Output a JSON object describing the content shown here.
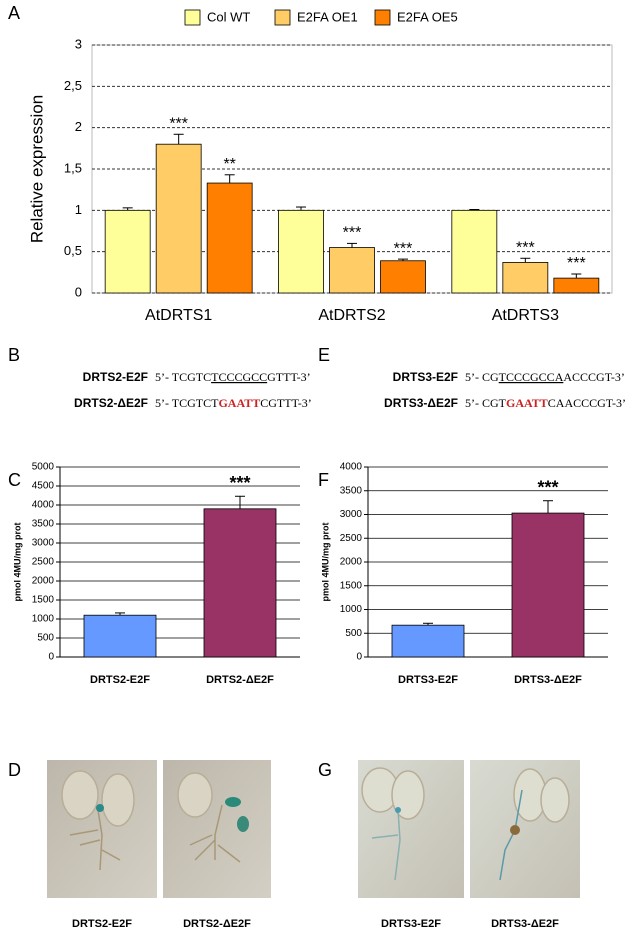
{
  "chart_data": [
    {
      "type": "bar",
      "panel": "A",
      "ylabel": "Relative expression",
      "categories": [
        "AtDRTS1",
        "AtDRTS2",
        "AtDRTS3"
      ],
      "series": [
        {
          "name": "Col WT",
          "color": "#ffff99",
          "values": [
            1.0,
            1.0,
            1.0
          ],
          "errors": [
            0.03,
            0.04,
            0.01
          ],
          "significance": [
            null,
            null,
            null
          ]
        },
        {
          "name": "E2FA OE1",
          "color": "#ffcc66",
          "values": [
            1.8,
            0.55,
            0.37
          ],
          "errors": [
            0.12,
            0.05,
            0.05
          ],
          "significance": [
            "***",
            "***",
            "***"
          ]
        },
        {
          "name": "E2FA OE5",
          "color": "#ff8000",
          "values": [
            1.33,
            0.39,
            0.18
          ],
          "errors": [
            0.1,
            0.02,
            0.05
          ],
          "significance": [
            "**",
            "***",
            "***"
          ]
        }
      ],
      "ylim": [
        0,
        3
      ],
      "yticks": [
        0,
        {
          "value": 0.5,
          "label": "0,5"
        },
        1,
        {
          "value": 1.5,
          "label": "1,5"
        },
        2,
        {
          "value": 2.5,
          "label": "2,5"
        },
        3
      ],
      "grid": "dashed",
      "legend": "top"
    },
    {
      "type": "bar",
      "panel": "C",
      "ylabel": "pmol 4MU/mg prot",
      "categories": [
        "DRTS2-E2F",
        "DRTS2-ΔE2F"
      ],
      "values": [
        1100,
        3900
      ],
      "errors": [
        60,
        330
      ],
      "colors": [
        "#6699ff",
        "#993366"
      ],
      "significance": [
        null,
        "***"
      ],
      "ylim": [
        0,
        5000
      ],
      "yticks": [
        0,
        500,
        1000,
        1500,
        2000,
        2500,
        3000,
        3500,
        4000,
        4500,
        5000
      ],
      "grid": "solid"
    },
    {
      "type": "bar",
      "panel": "F",
      "ylabel": "pmol 4MU/mg prot",
      "categories": [
        "DRTS3-E2F",
        "DRTS3-ΔE2F"
      ],
      "values": [
        670,
        3030
      ],
      "errors": [
        40,
        260
      ],
      "colors": [
        "#6699ff",
        "#993366"
      ],
      "significance": [
        null,
        "***"
      ],
      "ylim": [
        0,
        4000
      ],
      "yticks": [
        0,
        500,
        1000,
        1500,
        2000,
        2500,
        3000,
        3500,
        4000
      ],
      "grid": "solid"
    }
  ],
  "sequences": [
    {
      "panel": "B",
      "rows": [
        {
          "name": "DRTS2-E2F",
          "parts": [
            {
              "text": "5’- TCGTC"
            },
            {
              "text": "TCCCGCC",
              "underline": true
            },
            {
              "text": "GTTT-3’"
            }
          ]
        },
        {
          "name": "DRTS2-ΔE2F",
          "parts": [
            {
              "text": "5’- TCGTCT"
            },
            {
              "text": "GAATT",
              "color": "#cc2222"
            },
            {
              "text": "CGTTT-3’"
            }
          ]
        }
      ]
    },
    {
      "panel": "E",
      "rows": [
        {
          "name": "DRTS3-E2F",
          "parts": [
            {
              "text": "5’- CG"
            },
            {
              "text": "TCCCGCCA",
              "underline": true
            },
            {
              "text": "ACCCGT-3’"
            }
          ]
        },
        {
          "name": "DRTS3-ΔE2F",
          "parts": [
            {
              "text": "5’- CGT"
            },
            {
              "text": "GAATT",
              "color": "#cc2222"
            },
            {
              "text": "CAACCCGT-3’"
            }
          ]
        }
      ]
    }
  ],
  "photos": [
    {
      "panel": "D",
      "captions": [
        "DRTS2-E2F",
        "DRTS2-ΔE2F"
      ]
    },
    {
      "panel": "G",
      "captions": [
        "DRTS3-E2F",
        "DRTS3-ΔE2F"
      ]
    }
  ]
}
